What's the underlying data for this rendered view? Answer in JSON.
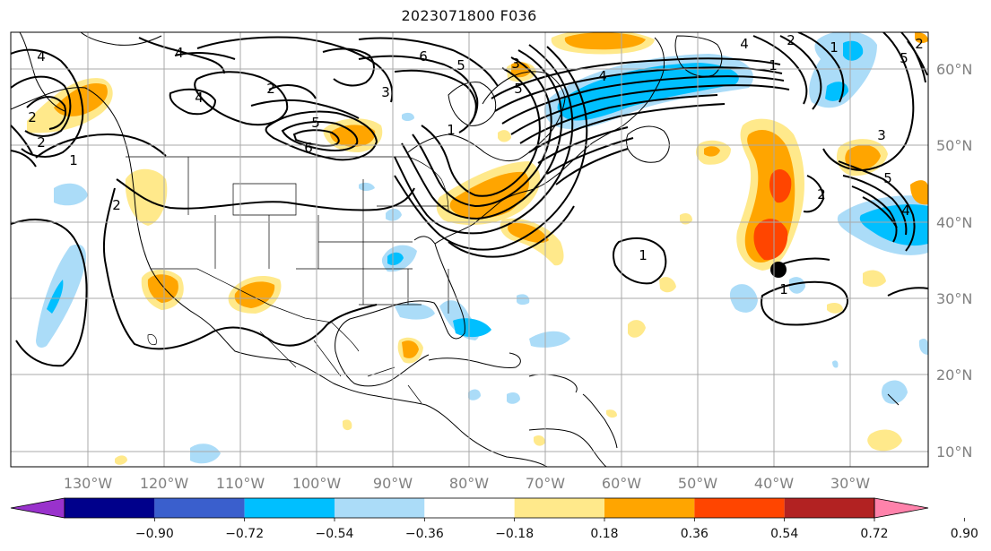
{
  "title": "2023071800 F036",
  "lat_labels": [
    "60°N",
    "50°N",
    "40°N",
    "30°N",
    "20°N",
    "10°N"
  ],
  "lon_labels": [
    "130°W",
    "120°W",
    "110°W",
    "100°W",
    "90°W",
    "80°W",
    "70°W",
    "60°W",
    "50°W",
    "40°W",
    "30°W"
  ],
  "colorbar": {
    "colors": [
      "#9932cc",
      "#00008b",
      "#3a5fcd",
      "#00bfff",
      "#abdcf8",
      "#ffffff",
      "#ffe98b",
      "#ffa500",
      "#ff4500",
      "#b22222",
      "#ff82ab"
    ],
    "tick_labels": [
      "−0.90",
      "−0.72",
      "−0.54",
      "−0.36",
      "−0.18",
      "0.18",
      "0.36",
      "0.54",
      "0.72",
      "0.90"
    ]
  },
  "contour_labels": [
    "4",
    "4",
    "6",
    "5",
    "2",
    "3",
    "5",
    "6",
    "4",
    "5",
    "2",
    "1",
    "2",
    "2",
    "4",
    "5",
    "1",
    "1",
    "2",
    "1",
    "1",
    "2",
    "3",
    "5",
    "4",
    "2",
    "1",
    "3",
    "4"
  ],
  "marker": {
    "lat": 34,
    "lon": -40
  }
}
